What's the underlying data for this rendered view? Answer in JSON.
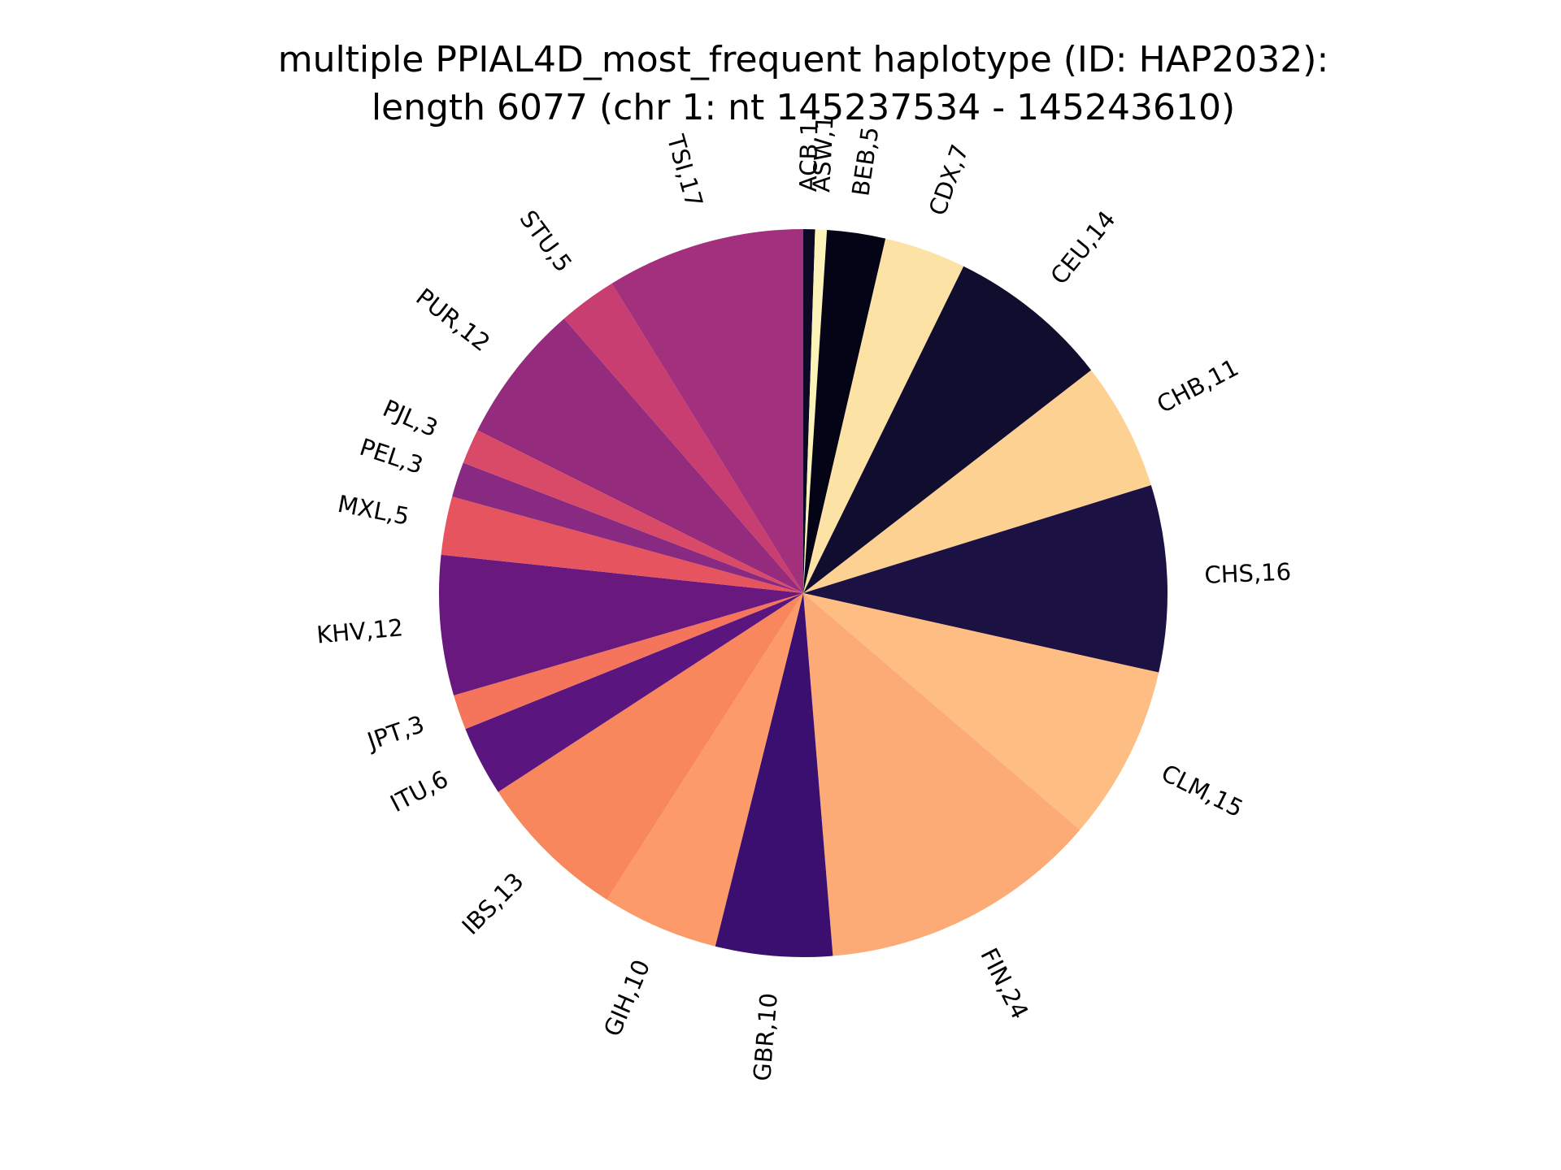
{
  "chart_data": {
    "type": "pie",
    "title_line1": "multiple PPIAL4D_most_frequent haplotype (ID: HAP2032):",
    "title_line2": "length 6077 (chr 1: nt 145237534 - 145243610)",
    "start_angle_deg": 90,
    "direction": "clockwise",
    "slices": [
      {
        "label": "ACB,1",
        "name": "ACB",
        "value": 1,
        "color": "#0b0924"
      },
      {
        "label": "ASW,1",
        "name": "ASW",
        "value": 1,
        "color": "#fcf3b8"
      },
      {
        "label": "BEB,5",
        "name": "BEB",
        "value": 5,
        "color": "#050417"
      },
      {
        "label": "CDX,7",
        "name": "CDX",
        "value": 7,
        "color": "#fde2a6"
      },
      {
        "label": "CEU,14",
        "name": "CEU",
        "value": 14,
        "color": "#110d2f"
      },
      {
        "label": "CHB,11",
        "name": "CHB",
        "value": 11,
        "color": "#fdd192"
      },
      {
        "label": "CHS,16",
        "name": "CHS",
        "value": 16,
        "color": "#1c1143"
      },
      {
        "label": "CLM,15",
        "name": "CLM",
        "value": 15,
        "color": "#febd83"
      },
      {
        "label": "FIN,24",
        "name": "FIN",
        "value": 24,
        "color": "#fcaa76"
      },
      {
        "label": "GBR,10",
        "name": "GBR",
        "value": 10,
        "color": "#3b0f6f"
      },
      {
        "label": "GIH,10",
        "name": "GIH",
        "value": 10,
        "color": "#fd9a6a"
      },
      {
        "label": "IBS,13",
        "name": "IBS",
        "value": 13,
        "color": "#f8875e"
      },
      {
        "label": "ITU,6",
        "name": "ITU",
        "value": 6,
        "color": "#5a167e"
      },
      {
        "label": "JPT,3",
        "name": "JPT",
        "value": 3,
        "color": "#f4745c"
      },
      {
        "label": "KHV,12",
        "name": "KHV",
        "value": 12,
        "color": "#69197e"
      },
      {
        "label": "MXL,5",
        "name": "MXL",
        "value": 5,
        "color": "#e5545f"
      },
      {
        "label": "PEL,3",
        "name": "PEL",
        "value": 3,
        "color": "#882a81"
      },
      {
        "label": "PJL,3",
        "name": "PJL",
        "value": 3,
        "color": "#d94a68"
      },
      {
        "label": "PUR,12",
        "name": "PUR",
        "value": 12,
        "color": "#942b7c"
      },
      {
        "label": "STU,5",
        "name": "STU",
        "value": 5,
        "color": "#c83e70"
      },
      {
        "label": "TSI,17",
        "name": "TSI",
        "value": 17,
        "color": "#a3307c"
      }
    ]
  }
}
